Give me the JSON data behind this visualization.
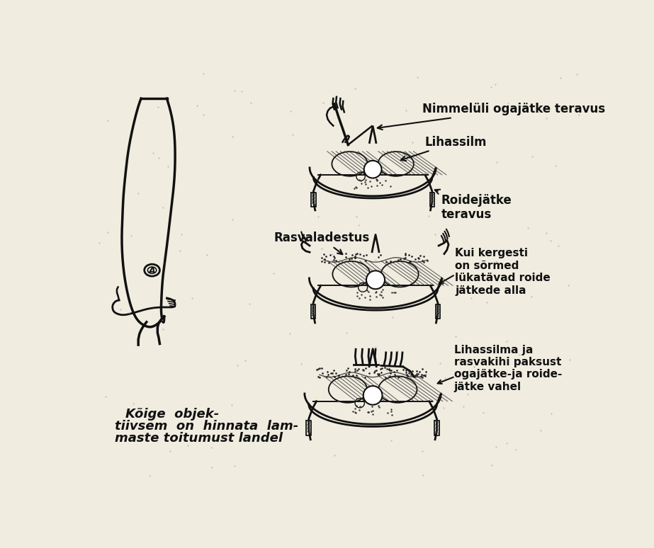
{
  "bg_color": "#f0ece0",
  "text_color": "#000000",
  "labels": {
    "label1": "Nimmelüli ogajätke teravus",
    "label2": "Lihassilm",
    "label3": "Roidejätke\nteravus",
    "label4": "Rasvaladestus",
    "label5": "Kui kergesti\non sõrmed\nlükatävad roide\njätkede alla",
    "label6": "Lihassilma ja\nrasvakihi paksust\nogajätke-ja roide-\njätke vahel",
    "caption_line1": "Kõige  objek-",
    "caption_line2": "tiivsem  on  hinnata  lam-",
    "caption_line3": "maste toitumust landel"
  },
  "fig_width": 9.23,
  "fig_height": 7.74,
  "dpi": 100
}
